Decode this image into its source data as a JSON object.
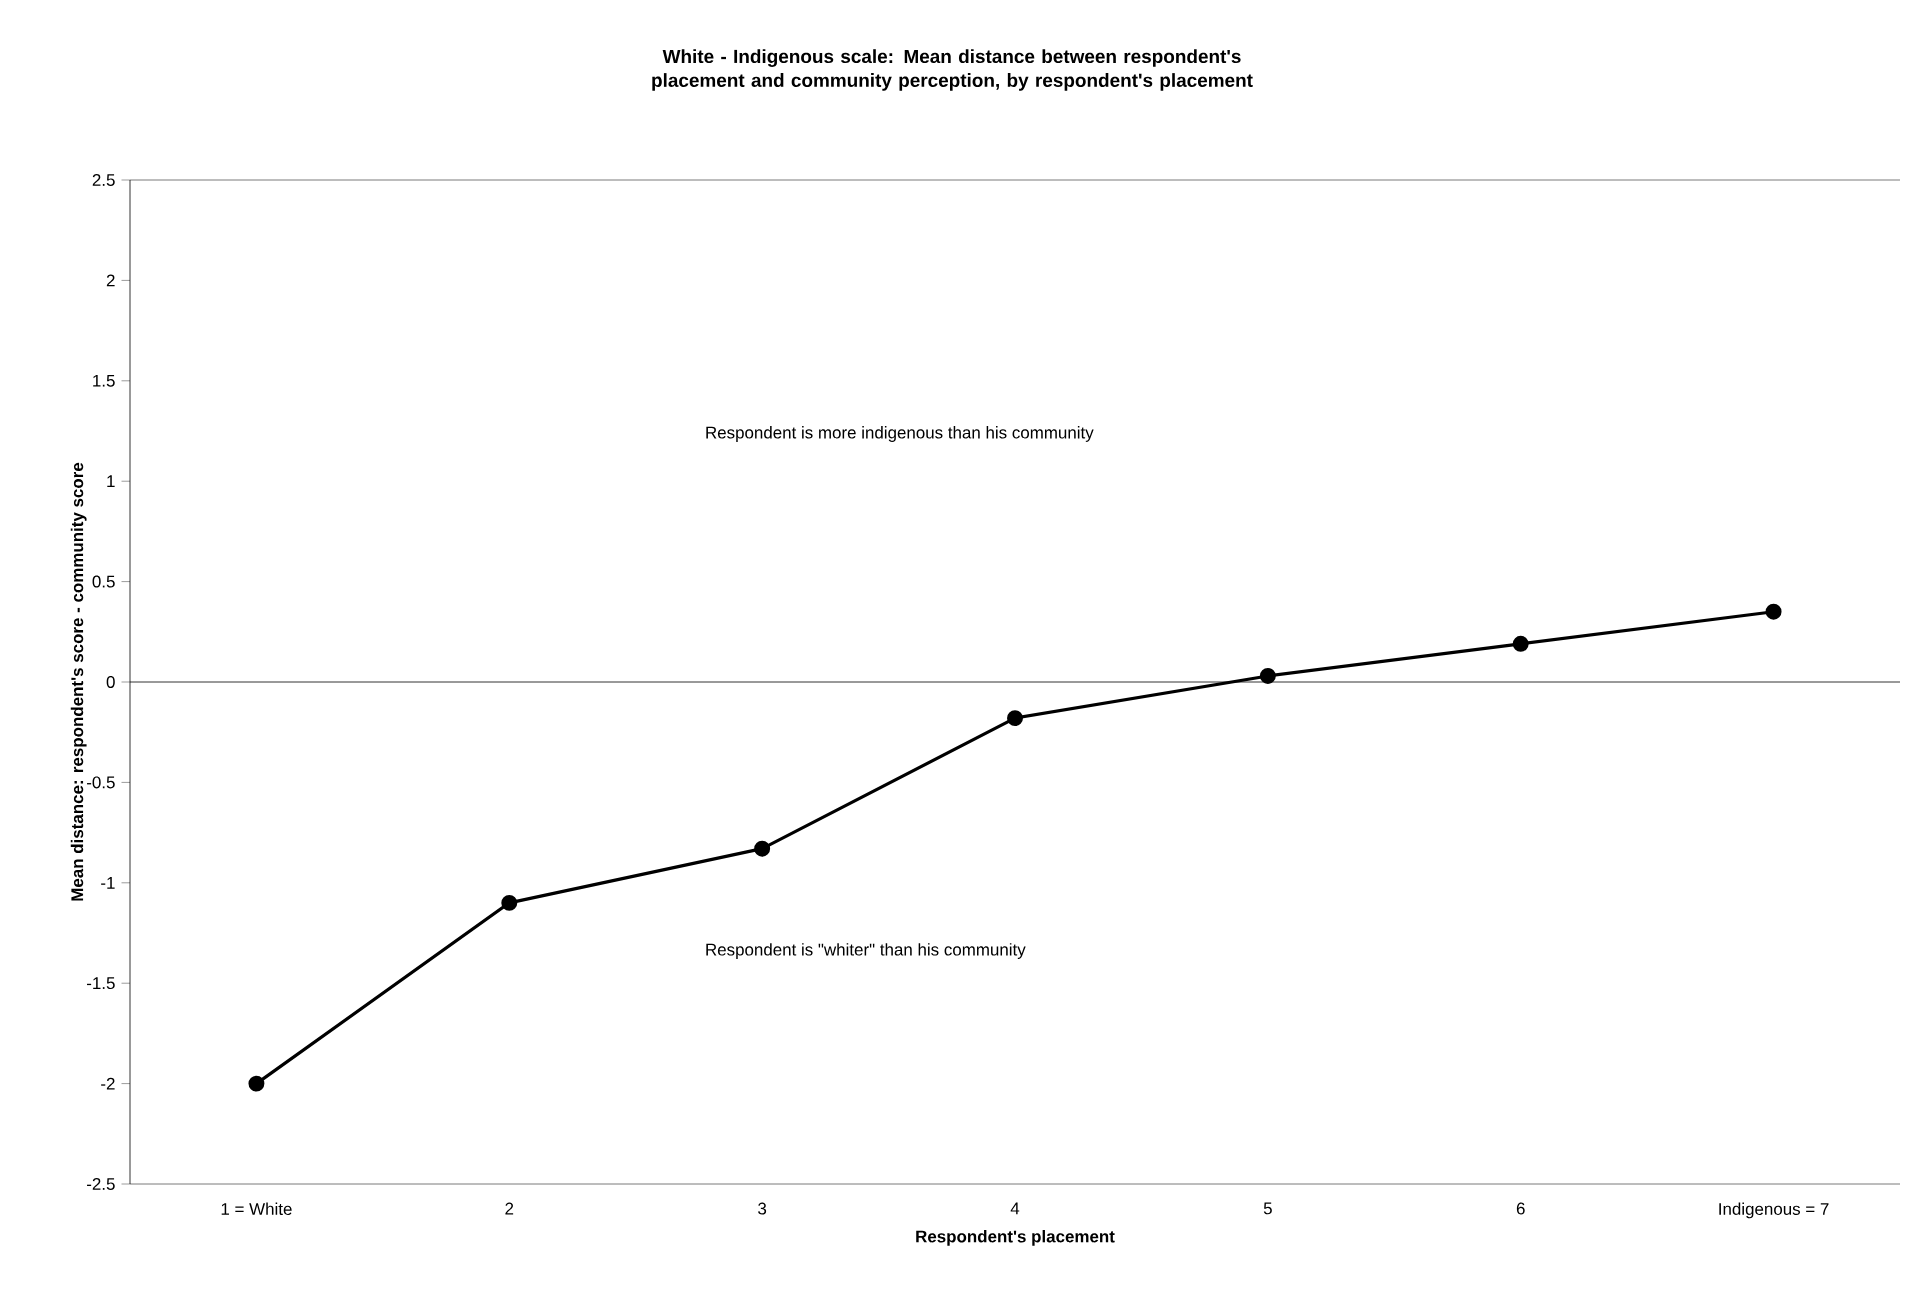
{
  "chart_data": {
    "type": "line",
    "title": "White - Indigenous scale: Mean distance between respondent's placement and community perception, by respondent's placement",
    "xlabel": "Respondent's placement",
    "ylabel": "Mean distance: respondent's score - community score",
    "categories": [
      "1 = White",
      "2",
      "3",
      "4",
      "5",
      "6",
      "Indigenous = 7"
    ],
    "series": [
      {
        "color": "#000000",
        "values": [
          -2.0,
          -1.1,
          -0.83,
          -0.18,
          0.03,
          0.19,
          0.35
        ]
      }
    ],
    "ylim": [
      -2.5,
      2.5
    ],
    "yticks": [
      -2.5,
      -2,
      -1.5,
      -1,
      -0.5,
      0,
      0.5,
      1,
      1.5,
      2,
      2.5
    ],
    "ref_lines": [
      {
        "axis": "y",
        "value": 0,
        "color": "#000000"
      }
    ],
    "annotations": [
      "Respondent is more indigenous than his community",
      "Respondent is \"whiter\" than his community"
    ],
    "marker": "circle",
    "line_style": "solid",
    "grid": false
  }
}
